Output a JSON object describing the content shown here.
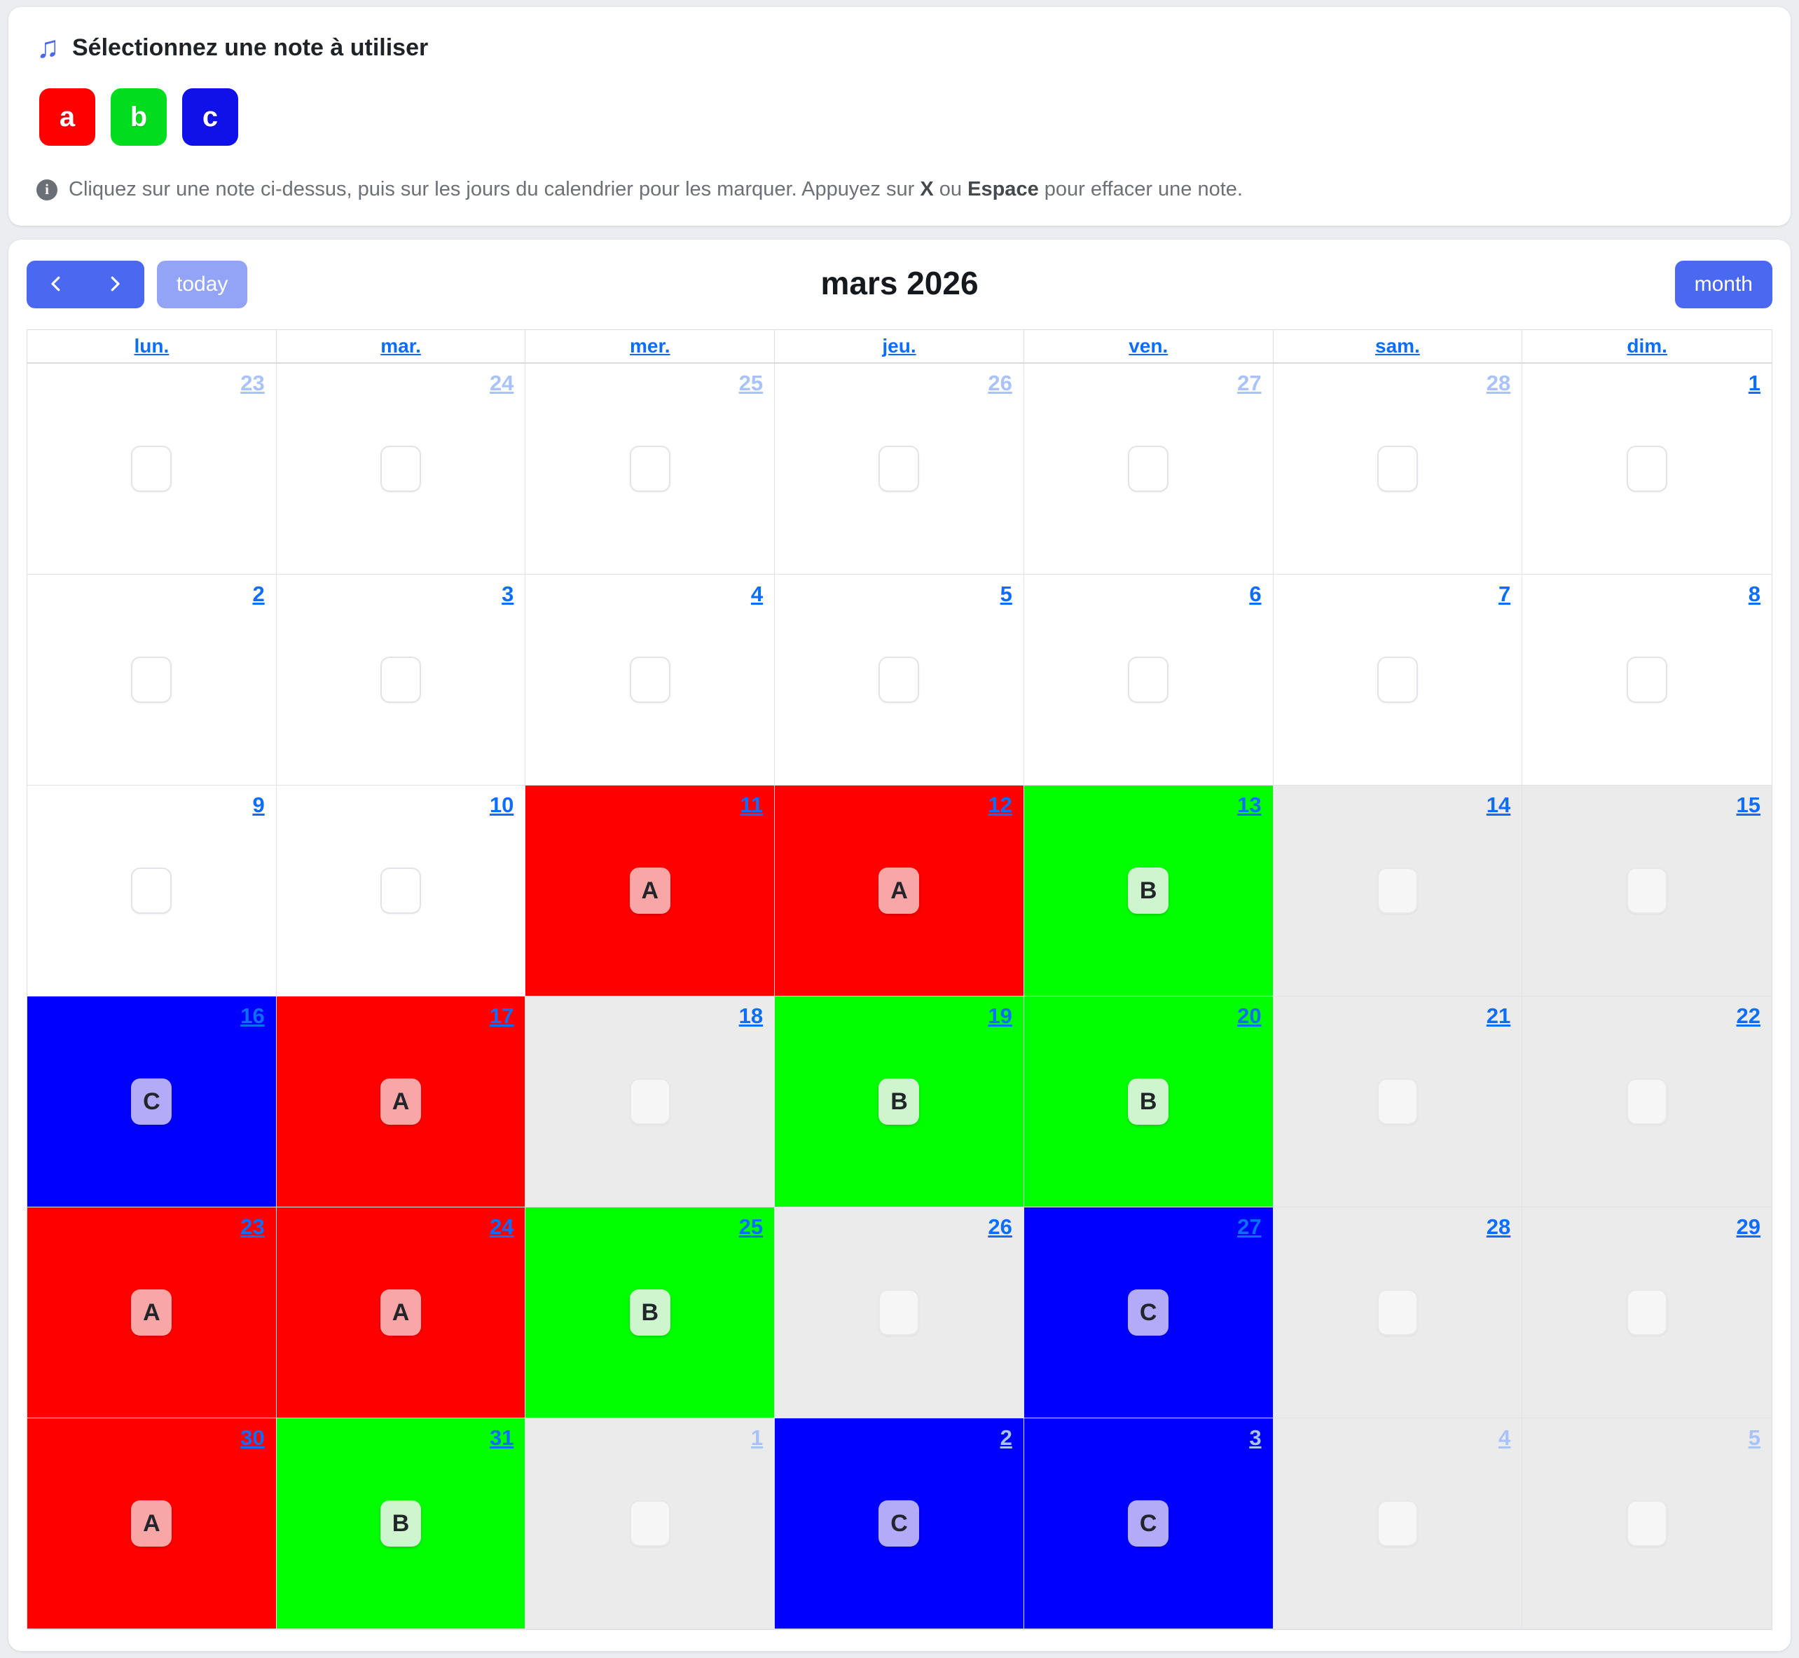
{
  "colors": {
    "primary": "#4a68f0",
    "primary_disabled": "#93a4f6",
    "link": "#0d6efd",
    "link_muted": "#a9c3f8",
    "cell": {
      "none": "#ffffff",
      "cleared": "#ebebeb",
      "a": "#ff0000",
      "b": "#00ff00",
      "c": "#0000ff"
    },
    "chip": {
      "a": "#f8a6a6",
      "b": "#cff5cf",
      "c": "#b3abf8"
    }
  },
  "note_selector": {
    "icon": "music-note",
    "title": "Sélectionnez une note à utiliser",
    "notes": [
      {
        "id": "a",
        "label": "a",
        "color": "#fe0000"
      },
      {
        "id": "b",
        "label": "b",
        "color": "#00dd1e"
      },
      {
        "id": "c",
        "label": "c",
        "color": "#1010e8"
      }
    ],
    "hint": {
      "before": "Cliquez sur une note ci-dessus, puis sur les jours du calendrier pour les marquer. Appuyez sur ",
      "key1": "X",
      "middle": " ou ",
      "key2": "Espace",
      "after": " pour effacer une note."
    }
  },
  "toolbar": {
    "today_label": "today",
    "month_label": "month",
    "title": "mars 2026"
  },
  "calendar": {
    "weekdays": [
      "lun.",
      "mar.",
      "mer.",
      "jeu.",
      "ven.",
      "sam.",
      "dim."
    ],
    "weeks": [
      [
        {
          "day": "23",
          "muted": true,
          "state": "none",
          "chip": ""
        },
        {
          "day": "24",
          "muted": true,
          "state": "none",
          "chip": ""
        },
        {
          "day": "25",
          "muted": true,
          "state": "none",
          "chip": ""
        },
        {
          "day": "26",
          "muted": true,
          "state": "none",
          "chip": ""
        },
        {
          "day": "27",
          "muted": true,
          "state": "none",
          "chip": ""
        },
        {
          "day": "28",
          "muted": true,
          "state": "none",
          "chip": ""
        },
        {
          "day": "1",
          "muted": false,
          "state": "none",
          "chip": ""
        }
      ],
      [
        {
          "day": "2",
          "muted": false,
          "state": "none",
          "chip": ""
        },
        {
          "day": "3",
          "muted": false,
          "state": "none",
          "chip": ""
        },
        {
          "day": "4",
          "muted": false,
          "state": "none",
          "chip": ""
        },
        {
          "day": "5",
          "muted": false,
          "state": "none",
          "chip": ""
        },
        {
          "day": "6",
          "muted": false,
          "state": "none",
          "chip": ""
        },
        {
          "day": "7",
          "muted": false,
          "state": "none",
          "chip": ""
        },
        {
          "day": "8",
          "muted": false,
          "state": "none",
          "chip": ""
        }
      ],
      [
        {
          "day": "9",
          "muted": false,
          "state": "none",
          "chip": ""
        },
        {
          "day": "10",
          "muted": false,
          "state": "none",
          "chip": ""
        },
        {
          "day": "11",
          "muted": false,
          "state": "a",
          "chip": "A"
        },
        {
          "day": "12",
          "muted": false,
          "state": "a",
          "chip": "A"
        },
        {
          "day": "13",
          "muted": false,
          "state": "b",
          "chip": "B"
        },
        {
          "day": "14",
          "muted": false,
          "state": "cleared",
          "chip": ""
        },
        {
          "day": "15",
          "muted": false,
          "state": "cleared",
          "chip": ""
        }
      ],
      [
        {
          "day": "16",
          "muted": false,
          "state": "c",
          "chip": "C"
        },
        {
          "day": "17",
          "muted": false,
          "state": "a",
          "chip": "A"
        },
        {
          "day": "18",
          "muted": false,
          "state": "cleared",
          "chip": ""
        },
        {
          "day": "19",
          "muted": false,
          "state": "b",
          "chip": "B"
        },
        {
          "day": "20",
          "muted": false,
          "state": "b",
          "chip": "B"
        },
        {
          "day": "21",
          "muted": false,
          "state": "cleared",
          "chip": ""
        },
        {
          "day": "22",
          "muted": false,
          "state": "cleared",
          "chip": ""
        }
      ],
      [
        {
          "day": "23",
          "muted": false,
          "state": "a",
          "chip": "A"
        },
        {
          "day": "24",
          "muted": false,
          "state": "a",
          "chip": "A"
        },
        {
          "day": "25",
          "muted": false,
          "state": "b",
          "chip": "B"
        },
        {
          "day": "26",
          "muted": false,
          "state": "cleared",
          "chip": ""
        },
        {
          "day": "27",
          "muted": false,
          "state": "c",
          "chip": "C"
        },
        {
          "day": "28",
          "muted": false,
          "state": "cleared",
          "chip": ""
        },
        {
          "day": "29",
          "muted": false,
          "state": "cleared",
          "chip": ""
        }
      ],
      [
        {
          "day": "30",
          "muted": false,
          "state": "a",
          "chip": "A"
        },
        {
          "day": "31",
          "muted": false,
          "state": "b",
          "chip": "B"
        },
        {
          "day": "1",
          "muted": true,
          "state": "cleared",
          "chip": ""
        },
        {
          "day": "2",
          "muted": true,
          "state": "c",
          "chip": "C"
        },
        {
          "day": "3",
          "muted": true,
          "state": "c",
          "chip": "C"
        },
        {
          "day": "4",
          "muted": true,
          "state": "cleared",
          "chip": ""
        },
        {
          "day": "5",
          "muted": true,
          "state": "cleared",
          "chip": ""
        }
      ]
    ]
  }
}
